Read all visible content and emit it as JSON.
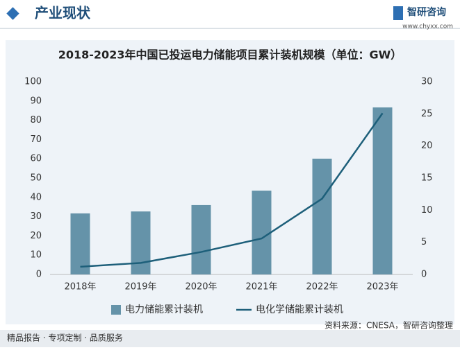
{
  "header": {
    "section": "产业现状",
    "brand": "智研咨询",
    "url": "www.chyxx.com"
  },
  "chart_data": {
    "type": "bar-line",
    "title": "2018-2023年中国已投运电力储能项目累计装机规模（单位：GW）",
    "categories": [
      "2018年",
      "2019年",
      "2020年",
      "2021年",
      "2022年",
      "2023年"
    ],
    "series": [
      {
        "name": "电力储能累计装机",
        "color": "#6593a9",
        "type": "bar",
        "values": [
          31.7,
          32.7,
          36.0,
          43.5,
          60.1,
          86.7
        ]
      },
      {
        "name": "电化学储能累计装机",
        "color": "#1d5f7a",
        "type": "line",
        "axis": "y2",
        "values": [
          1.2,
          1.8,
          3.5,
          5.6,
          11.8,
          25.1
        ]
      }
    ],
    "ylim": [
      0,
      100
    ],
    "yticks": [
      0,
      10,
      20,
      30,
      40,
      50,
      60,
      70,
      80,
      90,
      100
    ],
    "y2lim": [
      0,
      30
    ],
    "y2ticks": [
      0,
      5,
      10,
      15,
      20,
      25,
      30
    ]
  },
  "footer": {
    "slogan": "精品报告 · 专项定制 · 品质服务",
    "source": "资料来源：CNESA，智研咨询整理"
  }
}
